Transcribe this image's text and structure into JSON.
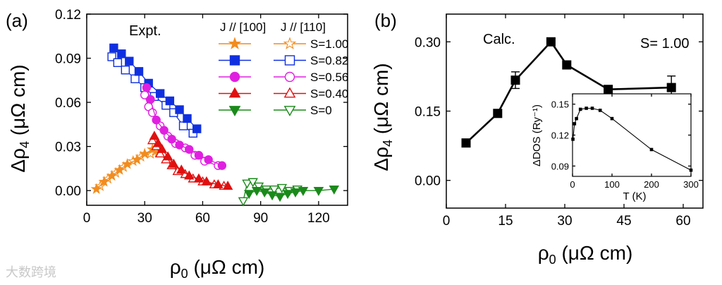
{
  "watermark": "大数跨境",
  "chart_data": [
    {
      "type": "scatter",
      "panel": "(a)",
      "annotation": "Expt.",
      "legend_headers": [
        "J // [100]",
        "J // [110]"
      ],
      "xlabel": "ρ0 (μΩ cm)",
      "ylabel": "Δρ4 (μΩ cm)",
      "xlim": [
        0,
        135
      ],
      "ylim": [
        -0.01,
        0.12
      ],
      "xticks": [
        "0",
        "30",
        "60",
        "90",
        "120"
      ],
      "yticks": [
        "0.00",
        "0.03",
        "0.06",
        "0.09",
        "0.12"
      ],
      "series": [
        {
          "name": "S=1.00",
          "color": "#f28c1e",
          "marker": "star",
          "x100": [
            [
              5,
              0.001
            ],
            [
              9,
              0.006
            ],
            [
              13,
              0.01
            ],
            [
              17,
              0.014
            ],
            [
              21,
              0.018
            ],
            [
              26,
              0.021
            ],
            [
              30,
              0.025
            ],
            [
              34,
              0.028
            ],
            [
              37,
              0.026
            ]
          ],
          "x110": [
            [
              7,
              0.003
            ],
            [
              11,
              0.008
            ],
            [
              15,
              0.012
            ],
            [
              19,
              0.016
            ],
            [
              24,
              0.02
            ],
            [
              28,
              0.023
            ],
            [
              33,
              0.025
            ],
            [
              36,
              0.027
            ]
          ]
        },
        {
          "name": "S=0.82",
          "color": "#1030e0",
          "marker": "square",
          "x100": [
            [
              14,
              0.097
            ],
            [
              18,
              0.093
            ],
            [
              22,
              0.088
            ],
            [
              27,
              0.081
            ],
            [
              32,
              0.073
            ],
            [
              38,
              0.066
            ],
            [
              43,
              0.061
            ],
            [
              48,
              0.055
            ],
            [
              52,
              0.049
            ],
            [
              57,
              0.042
            ]
          ],
          "x110": [
            [
              13,
              0.091
            ],
            [
              16,
              0.087
            ],
            [
              20,
              0.082
            ],
            [
              25,
              0.076
            ],
            [
              30,
              0.07
            ],
            [
              35,
              0.064
            ],
            [
              41,
              0.058
            ],
            [
              45,
              0.053
            ],
            [
              50,
              0.044
            ],
            [
              55,
              0.039
            ]
          ]
        },
        {
          "name": "S=0.56",
          "color": "#e020e0",
          "marker": "circle",
          "x100": [
            [
              31,
              0.07
            ],
            [
              33,
              0.062
            ],
            [
              36,
              0.048
            ],
            [
              40,
              0.041
            ],
            [
              44,
              0.035
            ],
            [
              48,
              0.031
            ],
            [
              53,
              0.028
            ],
            [
              58,
              0.024
            ],
            [
              63,
              0.021
            ],
            [
              70,
              0.017
            ]
          ],
          "x110": [
            [
              30,
              0.065
            ],
            [
              32,
              0.057
            ],
            [
              34,
              0.053
            ],
            [
              38,
              0.044
            ],
            [
              42,
              0.037
            ],
            [
              46,
              0.032
            ],
            [
              51,
              0.029
            ],
            [
              56,
              0.024
            ],
            [
              61,
              0.02
            ],
            [
              68,
              0.017
            ]
          ]
        },
        {
          "name": "S=0.40",
          "color": "#e01010",
          "marker": "triangle-up",
          "x100": [
            [
              35,
              0.037
            ],
            [
              37,
              0.032
            ],
            [
              39,
              0.028
            ],
            [
              42,
              0.023
            ],
            [
              45,
              0.018
            ],
            [
              49,
              0.014
            ],
            [
              53,
              0.01
            ],
            [
              58,
              0.008
            ],
            [
              62,
              0.006
            ],
            [
              68,
              0.004
            ],
            [
              73,
              0.003
            ]
          ],
          "x110": [
            [
              34,
              0.034
            ],
            [
              36,
              0.03
            ],
            [
              38,
              0.025
            ],
            [
              41,
              0.021
            ],
            [
              44,
              0.017
            ],
            [
              47,
              0.013
            ],
            [
              51,
              0.011
            ],
            [
              55,
              0.008
            ],
            [
              60,
              0.006
            ],
            [
              66,
              0.004
            ],
            [
              71,
              0.003
            ]
          ]
        },
        {
          "name": "S=0",
          "color": "#1a8a1a",
          "marker": "triangle-down",
          "x100": [
            [
              84,
              -0.002
            ],
            [
              88,
              0.0
            ],
            [
              92,
              -0.001
            ],
            [
              96,
              -0.003
            ],
            [
              100,
              -0.004
            ],
            [
              104,
              -0.002
            ],
            [
              108,
              -0.001
            ],
            [
              112,
              0.0
            ],
            [
              120,
              0.0
            ],
            [
              128,
              0.001
            ]
          ],
          "x110": [
            [
              81,
              -0.007
            ],
            [
              83,
              0.005
            ],
            [
              86,
              0.006
            ],
            [
              89,
              0.003
            ],
            [
              93,
              0.001
            ],
            [
              97,
              0.001
            ],
            [
              101,
              0.002
            ],
            [
              105,
              0.0
            ],
            [
              109,
              0.001
            ]
          ]
        }
      ]
    },
    {
      "type": "line",
      "panel": "(b)",
      "annotation": "Calc.",
      "s_label": "S= 1.00",
      "xlabel": "ρ0 (μΩ cm)",
      "ylabel": "Δρ4 (μΩ cm)",
      "xlim": [
        0,
        65
      ],
      "ylim": [
        -0.06,
        0.36
      ],
      "xticks": [
        "0",
        "15",
        "30",
        "45",
        "60"
      ],
      "yticks": [
        "0.00",
        "0.15",
        "0.30"
      ],
      "x": [
        5,
        13,
        17.5,
        26.5,
        30.5,
        41,
        57
      ],
      "y": [
        0.081,
        0.145,
        0.217,
        0.3,
        0.25,
        0.197,
        0.201
      ],
      "yerr": [
        0,
        0,
        0.018,
        0,
        0,
        0,
        0.025
      ],
      "inset": {
        "type": "line",
        "xlabel": "T (K)",
        "ylabel": "ΔDOS (Ry⁻¹)",
        "xlim": [
          0,
          300
        ],
        "ylim": [
          0.08,
          0.16
        ],
        "xticks": [
          "0",
          "100",
          "200",
          "300"
        ],
        "yticks": [
          "0.09",
          "0.12",
          "0.15"
        ],
        "x": [
          1,
          5,
          10,
          20,
          35,
          50,
          70,
          100,
          200,
          300
        ],
        "y": [
          0.116,
          0.131,
          0.136,
          0.145,
          0.146,
          0.146,
          0.144,
          0.136,
          0.106,
          0.086
        ]
      }
    }
  ]
}
